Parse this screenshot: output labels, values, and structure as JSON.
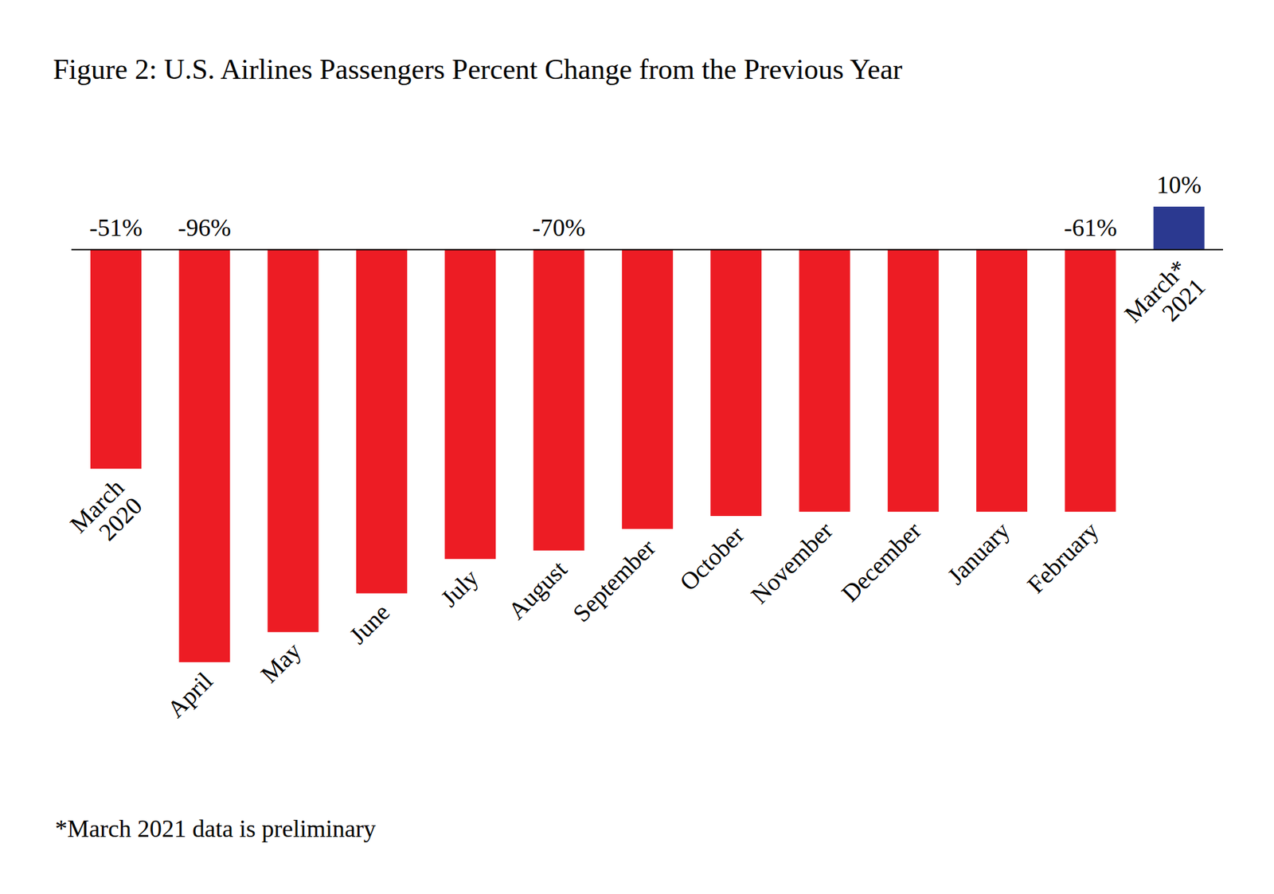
{
  "chart_data": {
    "type": "bar",
    "title": "Figure 2: U.S. Airlines Passengers Percent Change from the Previous Year",
    "annotations": [
      "*March 2021 data is preliminary"
    ],
    "categories": [
      "March 2020",
      "April",
      "May",
      "June",
      "July",
      "August",
      "September",
      "October",
      "November",
      "December",
      "January",
      "February",
      "March* 2021"
    ],
    "values": [
      -51,
      -96,
      -89,
      -80,
      -72,
      -70,
      -65,
      -62,
      -61,
      -61,
      -61,
      -61,
      10
    ],
    "value_labels": [
      "-51%",
      "-96%",
      null,
      null,
      null,
      "-70%",
      null,
      null,
      null,
      null,
      null,
      "-61%",
      "10%"
    ],
    "colors": [
      "#ed1c24",
      "#ed1c24",
      "#ed1c24",
      "#ed1c24",
      "#ed1c24",
      "#ed1c24",
      "#ed1c24",
      "#ed1c24",
      "#ed1c24",
      "#ed1c24",
      "#ed1c24",
      "#ed1c24",
      "#2b3990"
    ],
    "ylim": [
      -96,
      10
    ],
    "data_labels": true,
    "tick_labels": "x",
    "grid": false
  }
}
